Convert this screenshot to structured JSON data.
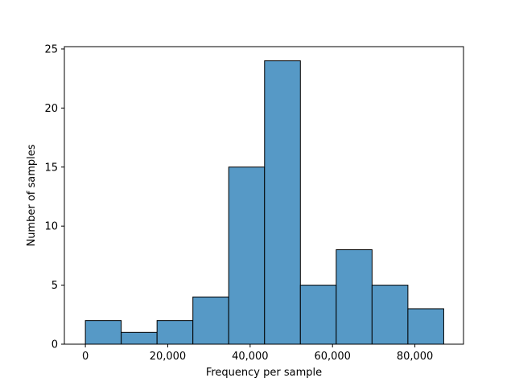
{
  "chart_data": {
    "type": "bar",
    "subtype": "histogram",
    "title": "",
    "xlabel": "Frequency per sample",
    "ylabel": "Number of samples",
    "xlim": [
      -5100,
      91800
    ],
    "ylim": [
      0,
      25.2
    ],
    "bin_edges": [
      0,
      8700,
      17400,
      26100,
      34800,
      43500,
      52200,
      60900,
      69600,
      78300,
      87000
    ],
    "values": [
      2,
      1,
      2,
      4,
      15,
      24,
      5,
      8,
      5,
      3
    ],
    "x_ticks": [
      {
        "value": 0,
        "label": "0"
      },
      {
        "value": 20000,
        "label": "20,000"
      },
      {
        "value": 40000,
        "label": "40,000"
      },
      {
        "value": 60000,
        "label": "60,000"
      },
      {
        "value": 80000,
        "label": "80,000"
      }
    ],
    "y_ticks": [
      {
        "value": 0,
        "label": "0"
      },
      {
        "value": 5,
        "label": "5"
      },
      {
        "value": 10,
        "label": "10"
      },
      {
        "value": 15,
        "label": "15"
      },
      {
        "value": 20,
        "label": "20"
      },
      {
        "value": 25,
        "label": "25"
      }
    ],
    "grid": false,
    "colors": {
      "bar_fill": "#5699c6",
      "bar_edge": "#000000",
      "axes": "#000000"
    }
  }
}
